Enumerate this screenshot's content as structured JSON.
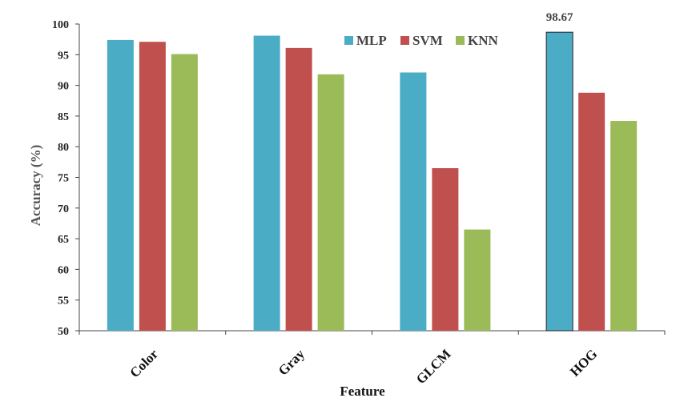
{
  "chart_data": {
    "type": "bar",
    "xlabel": "Feature",
    "ylabel": "Accuracy (%)",
    "ylim": [
      50,
      100
    ],
    "yticks": [
      50,
      55,
      60,
      65,
      70,
      75,
      80,
      85,
      90,
      95,
      100
    ],
    "categories": [
      "Color",
      "Gray",
      "GLCM",
      "HOG"
    ],
    "series": [
      {
        "name": "MLP",
        "color": "#4BACC6",
        "values": [
          97.4,
          98.1,
          92.1,
          98.67
        ]
      },
      {
        "name": "SVM",
        "color": "#C0504D",
        "values": [
          97.1,
          96.1,
          76.5,
          88.8
        ]
      },
      {
        "name": "KNN",
        "color": "#9BBB59",
        "values": [
          95.1,
          91.8,
          66.5,
          84.2
        ]
      }
    ],
    "annotations": [
      {
        "text": "98.67",
        "category": "HOG",
        "series": "MLP"
      }
    ],
    "highlight": {
      "category": "HOG",
      "series": "MLP"
    },
    "legend": "top-center",
    "grid": false
  }
}
